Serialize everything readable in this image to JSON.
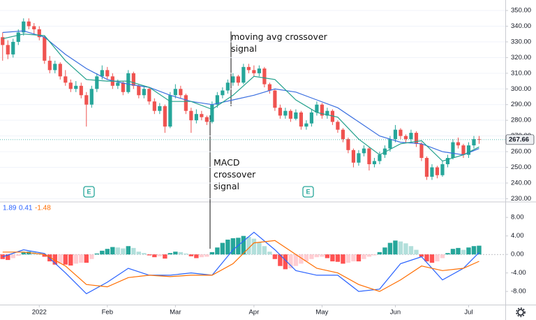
{
  "chart_data": [
    {
      "type": "candlestick",
      "xlim": [
        -0.5,
        96
      ],
      "ylim": [
        228.4,
        356.7
      ],
      "yticks": [
        {
          "value": 350,
          "label": "350.00"
        },
        {
          "value": 340,
          "label": "340.00"
        },
        {
          "value": 330,
          "label": "330.00"
        },
        {
          "value": 320,
          "label": "320.00"
        },
        {
          "value": 310,
          "label": "310.00"
        },
        {
          "value": 300,
          "label": "300.00"
        },
        {
          "value": 290,
          "label": "290.00"
        },
        {
          "value": 280,
          "label": "280.00"
        },
        {
          "value": 270,
          "label": "270.00"
        },
        {
          "value": 260,
          "label": "260.00"
        },
        {
          "value": 250,
          "label": "250.00"
        },
        {
          "value": 240,
          "label": "240.00"
        },
        {
          "value": 230,
          "label": "230.00"
        }
      ],
      "grid": true,
      "up_color": "#26a69a",
      "down_color": "#ef5350",
      "candles": [
        [
          333,
          336,
          318,
          328
        ],
        [
          328,
          331,
          319,
          322
        ],
        [
          322,
          332,
          320,
          330
        ],
        [
          330,
          338,
          328,
          336
        ],
        [
          336,
          345,
          334,
          343
        ],
        [
          343,
          345,
          338,
          340
        ],
        [
          340,
          342,
          335,
          338
        ],
        [
          338,
          340,
          331,
          333
        ],
        [
          333,
          334,
          316,
          318
        ],
        [
          318,
          321,
          310,
          312
        ],
        [
          312,
          318,
          310,
          316
        ],
        [
          316,
          317,
          306,
          308
        ],
        [
          308,
          312,
          302,
          304
        ],
        [
          304,
          306,
          298,
          300
        ],
        [
          300,
          305,
          298,
          302
        ],
        [
          302,
          304,
          294,
          296
        ],
        [
          296,
          298,
          276,
          290
        ],
        [
          290,
          302,
          288,
          300
        ],
        [
          300,
          310,
          298,
          308
        ],
        [
          308,
          315,
          306,
          312
        ],
        [
          312,
          314,
          306,
          308
        ],
        [
          308,
          310,
          300,
          302
        ],
        [
          302,
          306,
          300,
          304
        ],
        [
          304,
          305,
          296,
          298
        ],
        [
          298,
          312,
          297,
          310
        ],
        [
          310,
          311,
          300,
          302
        ],
        [
          302,
          303,
          294,
          296
        ],
        [
          296,
          302,
          294,
          300
        ],
        [
          300,
          301,
          290,
          292
        ],
        [
          292,
          294,
          284,
          286
        ],
        [
          286,
          291,
          284,
          289
        ],
        [
          289,
          290,
          272,
          276
        ],
        [
          276,
          298,
          275,
          296
        ],
        [
          296,
          303,
          294,
          300
        ],
        [
          300,
          302,
          294,
          296
        ],
        [
          296,
          297,
          284,
          286
        ],
        [
          286,
          288,
          272,
          280
        ],
        [
          280,
          287,
          278,
          284
        ],
        [
          284,
          286,
          280,
          282
        ],
        [
          282,
          283,
          277,
          279
        ],
        [
          279,
          292,
          278,
          290
        ],
        [
          290,
          298,
          288,
          296
        ],
        [
          296,
          301,
          294,
          299
        ],
        [
          299,
          306,
          297,
          304
        ],
        [
          304,
          310,
          302,
          308
        ],
        [
          308,
          309,
          302,
          304
        ],
        [
          304,
          316,
          303,
          314
        ],
        [
          314,
          316,
          310,
          312
        ],
        [
          312,
          315,
          308,
          310
        ],
        [
          310,
          315,
          308,
          313
        ],
        [
          313,
          314,
          301,
          303
        ],
        [
          303,
          304,
          297,
          299
        ],
        [
          299,
          300,
          286,
          288
        ],
        [
          288,
          290,
          281,
          283
        ],
        [
          283,
          288,
          281,
          286
        ],
        [
          286,
          287,
          279,
          281
        ],
        [
          281,
          287,
          280,
          285
        ],
        [
          285,
          286,
          274,
          276
        ],
        [
          276,
          280,
          274,
          278
        ],
        [
          278,
          287,
          276,
          285
        ],
        [
          285,
          292,
          283,
          290
        ],
        [
          290,
          291,
          281,
          283
        ],
        [
          283,
          288,
          281,
          286
        ],
        [
          286,
          287,
          277,
          279
        ],
        [
          279,
          280,
          272,
          274
        ],
        [
          274,
          275,
          266,
          268
        ],
        [
          268,
          269,
          259,
          261
        ],
        [
          261,
          262,
          250,
          253
        ],
        [
          253,
          261,
          251,
          259
        ],
        [
          259,
          264,
          257,
          262
        ],
        [
          262,
          263,
          248,
          252
        ],
        [
          252,
          256,
          250,
          254
        ],
        [
          254,
          260,
          252,
          258
        ],
        [
          258,
          264,
          256,
          262
        ],
        [
          262,
          270,
          260,
          268
        ],
        [
          268,
          277,
          266,
          274
        ],
        [
          274,
          275,
          268,
          270
        ],
        [
          270,
          271,
          266,
          268
        ],
        [
          268,
          274,
          266,
          272
        ],
        [
          272,
          273,
          263,
          265
        ],
        [
          265,
          266,
          254,
          256
        ],
        [
          256,
          257,
          242,
          244
        ],
        [
          244,
          252,
          242,
          250
        ],
        [
          250,
          251,
          243,
          245
        ],
        [
          245,
          254,
          244,
          252
        ],
        [
          252,
          258,
          250,
          256
        ],
        [
          256,
          268,
          255,
          266
        ],
        [
          266,
          269,
          262,
          264
        ],
        [
          264,
          265,
          256,
          258
        ],
        [
          258,
          266,
          256,
          264
        ],
        [
          264,
          270,
          262,
          268
        ],
        [
          268,
          270,
          265,
          267.66
        ]
      ],
      "series": [
        {
          "color": "#3a6fe0",
          "x": [
            0,
            4,
            8,
            12,
            16,
            20,
            24,
            28,
            32,
            36,
            40,
            44,
            48,
            52,
            56,
            60,
            64,
            68,
            72,
            76,
            80,
            84,
            88,
            91
          ],
          "values": [
            336,
            337,
            333,
            322,
            313,
            306,
            303,
            301,
            296,
            292,
            290,
            293,
            296,
            300,
            298,
            293,
            288,
            279,
            270,
            266,
            265,
            260,
            258,
            262
          ]
        },
        {
          "color": "#22a08c",
          "x": [
            0,
            4,
            8,
            12,
            16,
            20,
            24,
            28,
            32,
            36,
            40,
            44,
            48,
            52,
            56,
            60,
            64,
            68,
            72,
            76,
            80,
            84,
            88,
            91
          ],
          "values": [
            332,
            335,
            334,
            318,
            306,
            305,
            305,
            301,
            292,
            292,
            287,
            296,
            308,
            306,
            293,
            285,
            282,
            268,
            258,
            265,
            267,
            254,
            258,
            263
          ]
        }
      ],
      "annotations": [
        "moving avg crossover signal",
        "MACD crossover signal"
      ]
    },
    {
      "type": "macd",
      "xlim": [
        -0.5,
        96
      ],
      "ylim": [
        -10.7,
        11.2
      ],
      "yticks": [
        {
          "value": 8,
          "label": "8.00"
        },
        {
          "value": 4,
          "label": "4.00"
        },
        {
          "value": 0,
          "label": "0.00"
        },
        {
          "value": -4,
          "label": "-4.00"
        },
        {
          "value": -8,
          "label": "-8.00"
        }
      ],
      "xticks": [
        {
          "value": 7,
          "label": "2022"
        },
        {
          "value": 20,
          "label": "Feb"
        },
        {
          "value": 33,
          "label": "Mar"
        },
        {
          "value": 48,
          "label": "Apr"
        },
        {
          "value": 61,
          "label": "May"
        },
        {
          "value": 75,
          "label": "Jun"
        },
        {
          "value": 89,
          "label": "Jul"
        }
      ],
      "histogram_colors": [
        "#26a69a",
        "#b2dfdb",
        "#ffcdd2",
        "#ff5252"
      ],
      "histogram": [
        -1.0,
        -1.2,
        -0.8,
        -0.3,
        0.4,
        0.6,
        0.5,
        0.3,
        -0.5,
        -1.5,
        -2.2,
        -2.0,
        -2.2,
        -2.4,
        -2.0,
        -1.8,
        -1.8,
        -1.0,
        0.2,
        0.8,
        1.2,
        1.6,
        1.5,
        1.3,
        1.8,
        1.4,
        0.6,
        0.3,
        -0.2,
        -0.6,
        -0.4,
        -0.9,
        0.3,
        0.6,
        0.5,
        0.2,
        -0.4,
        -0.8,
        -0.6,
        -0.5,
        0.5,
        1.5,
        2.5,
        3.2,
        3.5,
        3.6,
        4.0,
        3.8,
        3.4,
        2.6,
        1.8,
        0.6,
        -1.0,
        -2.5,
        -3.2,
        -3.0,
        -2.5,
        -2.0,
        -1.5,
        -1.0,
        -0.6,
        -0.5,
        -0.8,
        -1.5,
        -1.6,
        -2.0,
        -1.8,
        -1.5,
        -1.5,
        -1.0,
        -0.5,
        -0.2,
        0.5,
        1.5,
        2.5,
        3.0,
        2.8,
        2.4,
        1.8,
        1.0,
        -0.5,
        -1.5,
        -1.8,
        -1.5,
        -0.8,
        0.3,
        1.2,
        1.4,
        1.0,
        1.5,
        1.8,
        1.89
      ],
      "series": [
        {
          "color": "#2962ff",
          "x": [
            0,
            4,
            8,
            12,
            16,
            20,
            24,
            28,
            32,
            36,
            40,
            44,
            48,
            52,
            56,
            60,
            64,
            68,
            72,
            76,
            80,
            84,
            88,
            91
          ],
          "values": [
            -0.5,
            1.0,
            0.2,
            -4,
            -8.5,
            -6,
            -3,
            -4.5,
            -4.5,
            -4,
            -4.5,
            1,
            4.8,
            1,
            -3.5,
            -4.5,
            -4.5,
            -8,
            -7.5,
            -2,
            -0.5,
            -5.5,
            -3,
            0.41
          ]
        },
        {
          "color": "#ff6d00",
          "x": [
            0,
            4,
            8,
            12,
            16,
            20,
            24,
            28,
            32,
            36,
            40,
            44,
            48,
            52,
            56,
            60,
            64,
            68,
            72,
            76,
            80,
            84,
            88,
            91
          ],
          "values": [
            0.5,
            0.5,
            0,
            -2.5,
            -6.5,
            -7,
            -5,
            -4.5,
            -4.8,
            -4.5,
            -4.5,
            -2,
            2.5,
            3,
            0,
            -3,
            -4,
            -6.5,
            -8,
            -5.5,
            -2.5,
            -3.5,
            -3,
            -1.48
          ]
        }
      ]
    }
  ]
}
